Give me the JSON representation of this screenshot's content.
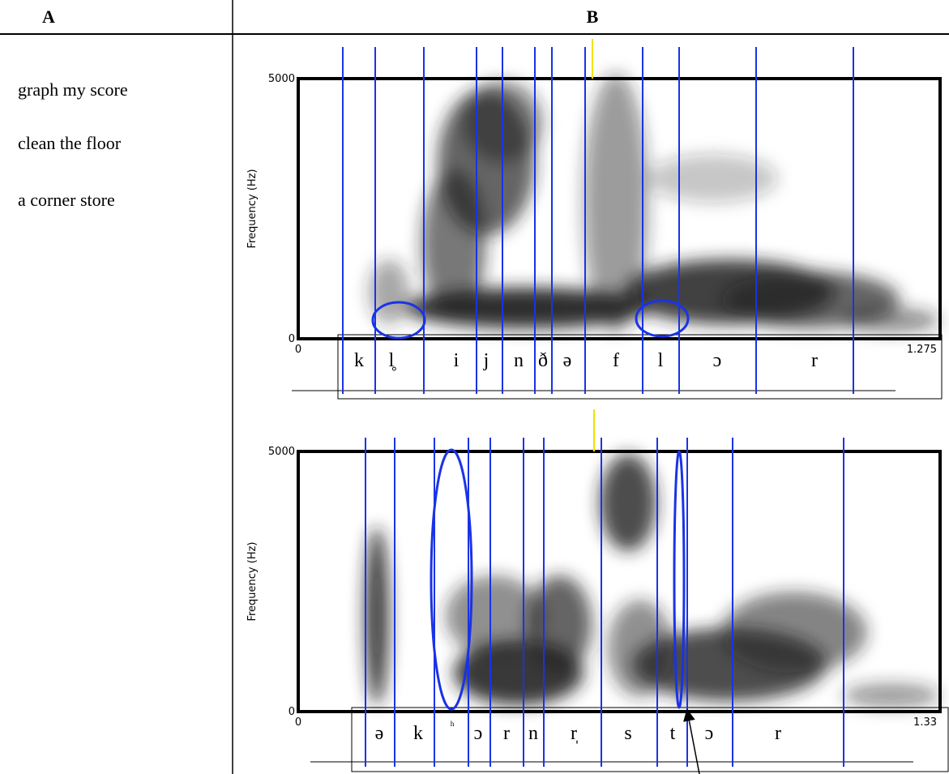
{
  "header": {
    "col_a": "A",
    "col_b": "B"
  },
  "phrases": [
    "graph my score",
    "clean the floor",
    "a corner store"
  ],
  "spectrograms": [
    {
      "y_axis_label": "Frequency (Hz)",
      "y_ticks": [
        "5000",
        "0"
      ],
      "x_ticks": [
        "0",
        "1.275"
      ],
      "segments": [
        "k",
        "l̥",
        "i",
        "j",
        "n",
        "ð",
        "ə",
        "f",
        "l",
        "ɔ",
        "r"
      ]
    },
    {
      "y_axis_label": "Frequency (Hz)",
      "y_ticks": [
        "5000",
        "0"
      ],
      "x_ticks": [
        "0",
        "1.33"
      ],
      "segments": [
        "ə",
        "k",
        "ʰ",
        "ɔ",
        "r",
        "n",
        "r̩",
        "s",
        "t",
        "ɔ",
        "r"
      ]
    }
  ]
}
